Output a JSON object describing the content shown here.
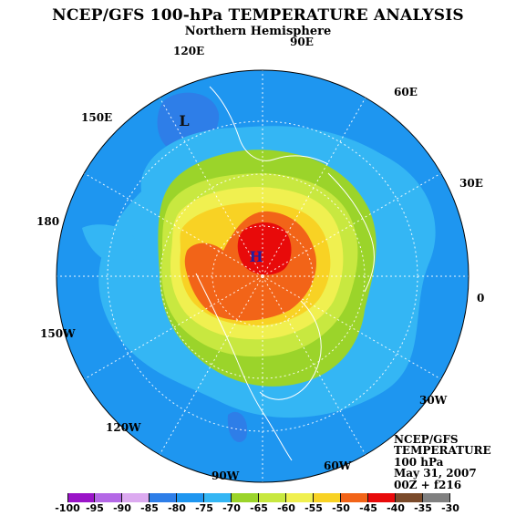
{
  "title": "NCEP/GFS 100-hPa TEMPERATURE ANALYSIS",
  "subtitle": "Northern Hemisphere",
  "info": {
    "line1": "NCEP/GFS",
    "line2": "TEMPERATURE",
    "line3": "100 hPa",
    "line4": "May 31, 2007",
    "line5": "00Z + f216"
  },
  "map": {
    "center_high": "H",
    "low_label": "L",
    "longitudes": [
      "0",
      "30E",
      "60E",
      "90E",
      "120E",
      "150E",
      "180",
      "150W",
      "120W",
      "90W",
      "60W",
      "30W"
    ]
  },
  "colorbar": {
    "ticks": [
      "-100",
      "-95",
      "-90",
      "-85",
      "-80",
      "-75",
      "-70",
      "-65",
      "-60",
      "-55",
      "-50",
      "-45",
      "-40",
      "-35",
      "-30"
    ],
    "colors": [
      "#9a14c8",
      "#b468e6",
      "#dcaaf0",
      "#2e7ee8",
      "#1e96f0",
      "#34b6f4",
      "#9bd42a",
      "#c8e840",
      "#f0f050",
      "#f8d224",
      "#f26418",
      "#e80a0a",
      "#7a4a2a",
      "#808080"
    ]
  }
}
